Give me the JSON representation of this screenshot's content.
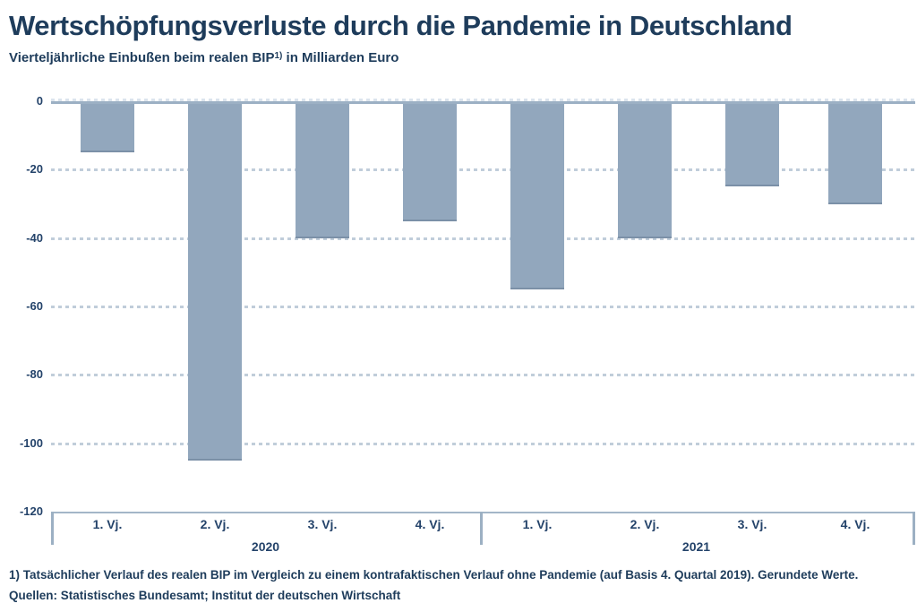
{
  "header": {
    "title": "Wertschöpfungsverluste durch die Pandemie in Deutschland",
    "subtitle_prefix": "Vierteljährliche Einbußen beim realen BIP",
    "subtitle_sup": "1)",
    "subtitle_suffix": " in Milliarden Euro"
  },
  "chart_data": {
    "type": "bar",
    "title": "Wertschöpfungsverluste durch die Pandemie in Deutschland",
    "subtitle": "Vierteljährliche Einbußen beim realen BIP in Milliarden Euro",
    "unit": "Milliarden Euro",
    "orientation": "vertical",
    "grid": "horizontal-dotted",
    "legend": "none",
    "ylim": [
      -120,
      0
    ],
    "yticks": [
      0,
      -20,
      -40,
      -60,
      -80,
      -100,
      -120
    ],
    "categories": [
      "1. Vj. 2020",
      "2. Vj. 2020",
      "3. Vj. 2020",
      "4. Vj. 2020",
      "1. Vj. 2021",
      "2. Vj. 2021",
      "3. Vj. 2021",
      "4. Vj. 2021"
    ],
    "values": [
      -15,
      -105,
      -40,
      -35,
      -55,
      -40,
      -25,
      -30
    ],
    "groups": [
      {
        "year": "2020",
        "quarters": [
          "1. Vj.",
          "2. Vj.",
          "3. Vj.",
          "4. Vj."
        ],
        "values": [
          -15,
          -105,
          -40,
          -35
        ]
      },
      {
        "year": "2021",
        "quarters": [
          "1. Vj.",
          "2. Vj.",
          "3. Vj.",
          "4. Vj."
        ],
        "values": [
          -55,
          -40,
          -25,
          -30
        ]
      }
    ],
    "bar_color": "#92a7bd",
    "bar_edge_color": "#7b90a7",
    "grid_color": "#c0cdda",
    "text_color": "#1e3c5b"
  },
  "footer": {
    "note": "1) Tatsächlicher Verlauf des realen BIP im Vergleich zu einem kontrafaktischen Verlauf ohne Pandemie (auf Basis 4. Quartal 2019). Gerundete Werte.",
    "source": "Quellen: Statistisches Bundesamt; Institut der deutschen Wirtschaft"
  }
}
